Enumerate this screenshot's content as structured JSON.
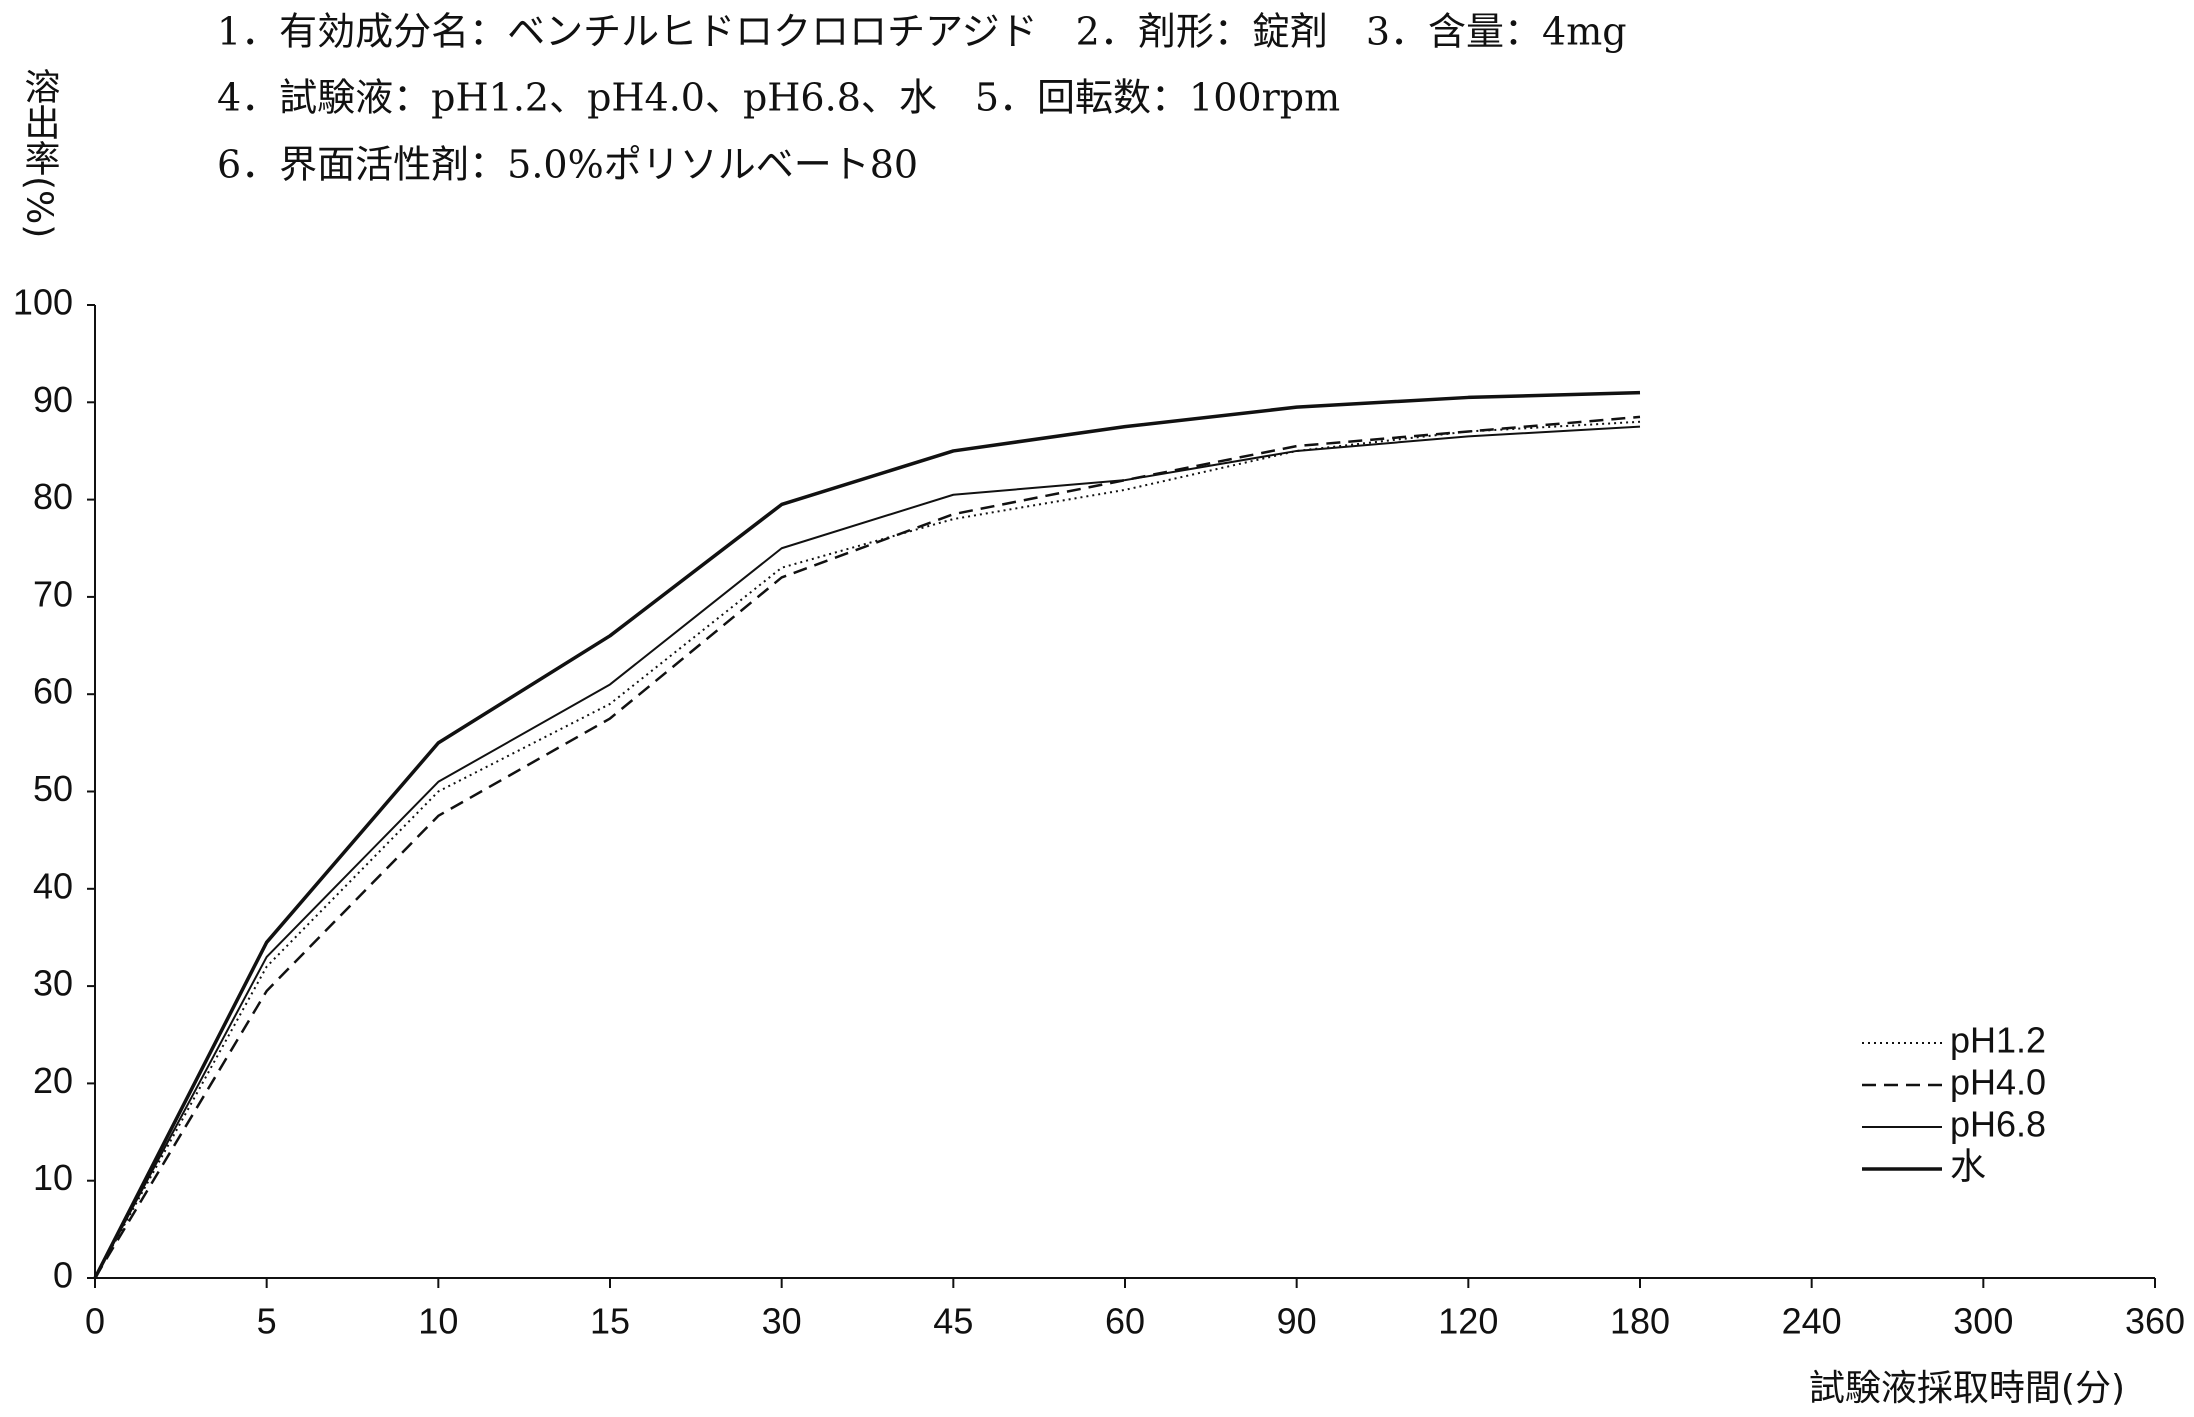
{
  "chart_data": {
    "type": "line",
    "title_lines": [
      "1．有効成分名：ベンチルヒドロクロロチアジド　2．剤形：錠剤　3．含量：4mg",
      "4．試験液：pH1.2、pH4.0、pH6.8、水　5．回転数：100rpm",
      "6．界面活性剤：5.0%ポリソルベート80"
    ],
    "y_label": "溶出率(%)",
    "x_label": "試験液採取時間(分)",
    "categories": [
      "0",
      "5",
      "10",
      "15",
      "30",
      "45",
      "60",
      "90",
      "120",
      "180",
      "240",
      "300",
      "360"
    ],
    "series": [
      {
        "name": "pH1.2",
        "color": "#111111",
        "line_style": "dotted",
        "line_width": 2,
        "values": [
          0,
          32,
          50,
          59,
          73,
          78,
          81,
          85,
          87,
          88,
          null,
          null,
          null
        ]
      },
      {
        "name": "pH4.0",
        "color": "#111111",
        "line_style": "dashed",
        "line_width": 2.5,
        "values": [
          0,
          29.5,
          47.5,
          57.5,
          72,
          78.5,
          82,
          85.5,
          87,
          88.5,
          null,
          null,
          null
        ]
      },
      {
        "name": "pH6.8",
        "color": "#111111",
        "line_style": "solid",
        "line_width": 2,
        "values": [
          0,
          33,
          51,
          61,
          75,
          80.5,
          82,
          85,
          86.5,
          87.5,
          null,
          null,
          null
        ]
      },
      {
        "name": "水",
        "color": "#111111",
        "line_style": "solid",
        "line_width": 3.5,
        "values": [
          0,
          34.5,
          55,
          66,
          79.5,
          85,
          87.5,
          89.5,
          90.5,
          91,
          null,
          null,
          null
        ]
      }
    ],
    "ylim": [
      0,
      100
    ],
    "yticks": [
      0,
      10,
      20,
      30,
      40,
      50,
      60,
      70,
      80,
      90,
      100
    ],
    "grid": false,
    "legend": "lower right"
  }
}
